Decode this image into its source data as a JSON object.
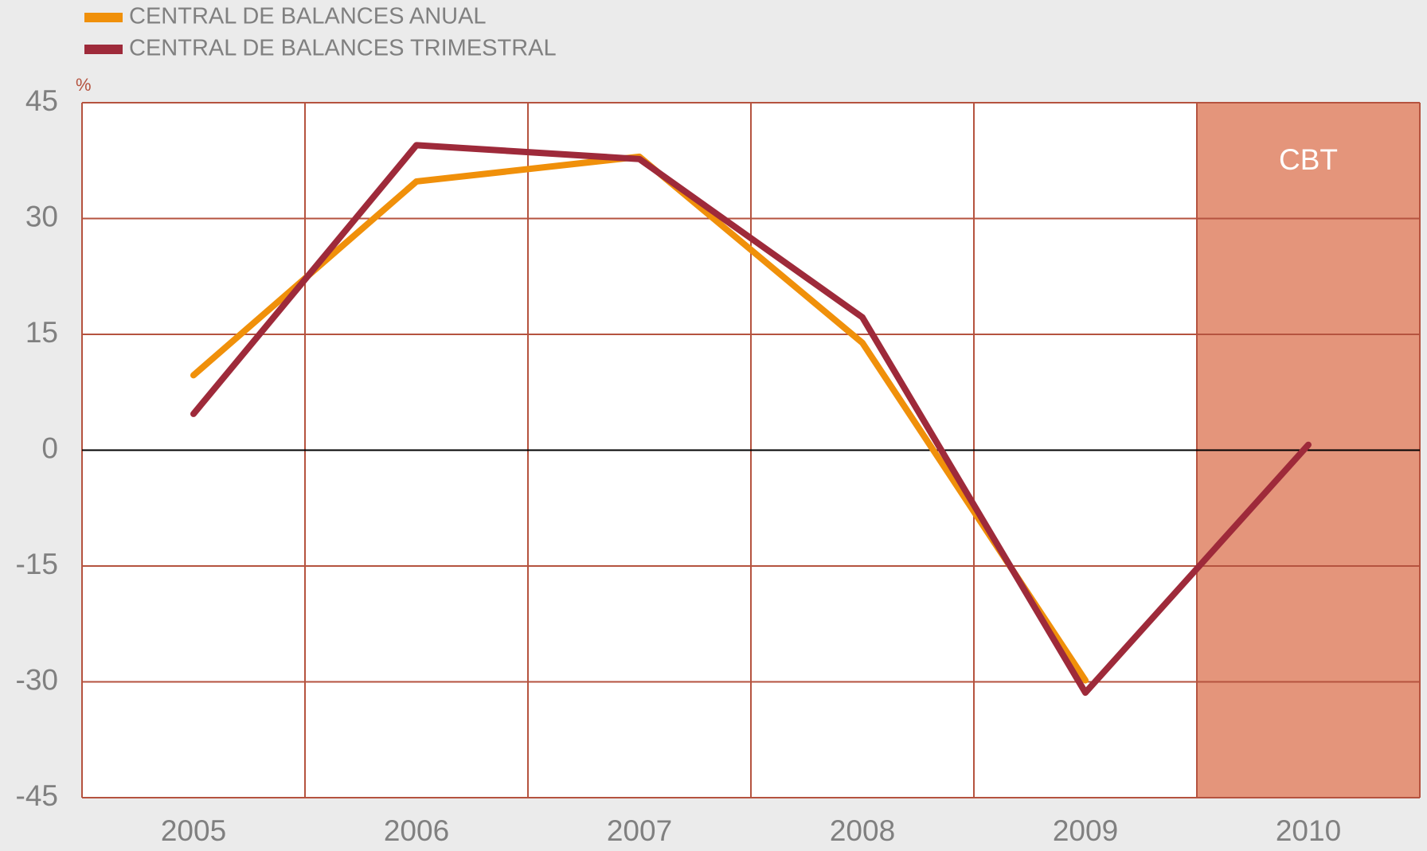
{
  "chart_data": {
    "type": "line",
    "y_unit": "%",
    "categories": [
      "2005",
      "2006",
      "2007",
      "2008",
      "2009",
      "2010"
    ],
    "series": [
      {
        "name": "CENTRAL DE BALANCES ANUAL",
        "color": "#f0900a",
        "values": [
          9.7,
          34.8,
          38.0,
          13.9,
          -29.8,
          null
        ]
      },
      {
        "name": "CENTRAL DE BALANCES TRIMESTRAL",
        "color": "#9e2a3a",
        "values": [
          4.7,
          39.5,
          37.7,
          17.2,
          -31.4,
          0.7
        ]
      }
    ],
    "ylim": [
      -45,
      45
    ],
    "yticks": [
      -45,
      -30,
      -15,
      0,
      15,
      30,
      45
    ],
    "grid": true,
    "grid_color": "#b5533f",
    "zero_line": true,
    "shaded_region": {
      "categories": [
        "2010"
      ],
      "label": "CBT",
      "color": "#e4957b"
    },
    "legend": "top-left"
  }
}
